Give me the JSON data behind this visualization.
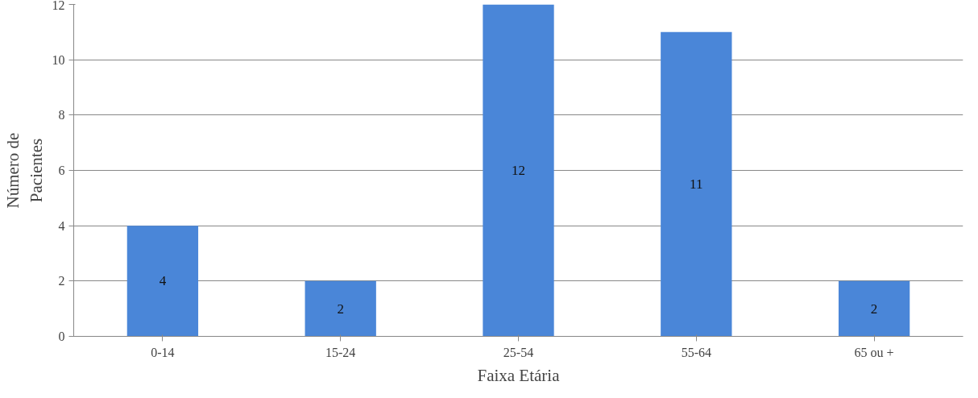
{
  "chart_data": {
    "type": "bar",
    "xlabel": "Faixa Etária",
    "ylabel": "Número de\nPacientes",
    "categories": [
      "0-14",
      "15-24",
      "25-54",
      "55-64",
      "65 ou +"
    ],
    "values": [
      4,
      2,
      12,
      11,
      2
    ],
    "color": "#4a86d8",
    "ylim": [
      0,
      12
    ],
    "yticks": [
      0,
      2,
      4,
      6,
      8,
      10,
      12
    ],
    "grid": "y",
    "data_labels": true
  }
}
